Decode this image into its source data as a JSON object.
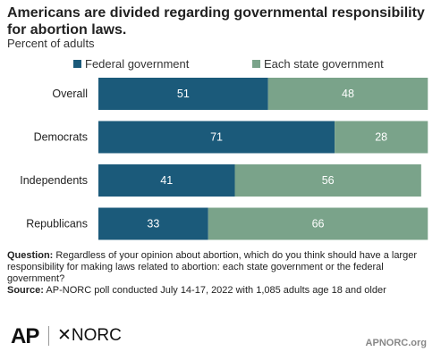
{
  "title": "Americans are divided regarding governmental responsibility for abortion laws.",
  "subtitle": "Percent of adults",
  "colors": {
    "federal": "#1b5a7a",
    "state": "#7aa38a"
  },
  "chart_data": {
    "type": "bar",
    "orientation": "horizontal",
    "stacked": true,
    "categories": [
      "Overall",
      "Democrats",
      "Independents",
      "Republicans"
    ],
    "series": [
      {
        "name": "Federal government",
        "values": [
          51,
          71,
          41,
          33
        ]
      },
      {
        "name": "Each state government",
        "values": [
          48,
          28,
          56,
          66
        ]
      }
    ],
    "xlim": [
      0,
      100
    ],
    "legend_position": "top"
  },
  "notes": {
    "question_label": "Question:",
    "question_text": "Regardless of your opinion about abortion, which do you think should have a larger responsibility for making laws related to abortion: each state government or the federal government?",
    "source_label": "Source:",
    "source_text": "AP-NORC poll conducted July 14-17, 2022 with 1,085 adults age 18 and older"
  },
  "footer": {
    "logo_ap": "AP",
    "logo_norc": "NORC",
    "site": "APNORC.org"
  }
}
